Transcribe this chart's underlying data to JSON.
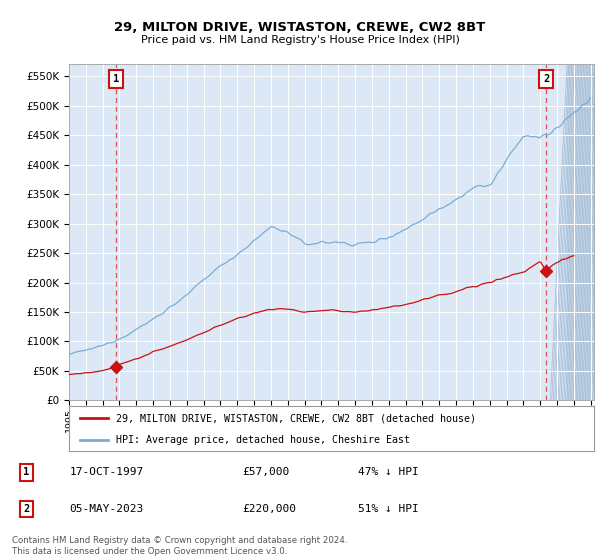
{
  "title1": "29, MILTON DRIVE, WISTASTON, CREWE, CW2 8BT",
  "title2": "Price paid vs. HM Land Registry's House Price Index (HPI)",
  "red_line_label": "29, MILTON DRIVE, WISTASTON, CREWE, CW2 8BT (detached house)",
  "blue_line_label": "HPI: Average price, detached house, Cheshire East",
  "transaction1_date": "17-OCT-1997",
  "transaction1_price": "£57,000",
  "transaction1_hpi": "47% ↓ HPI",
  "transaction2_date": "05-MAY-2023",
  "transaction2_price": "£220,000",
  "transaction2_hpi": "51% ↓ HPI",
  "footer": "Contains HM Land Registry data © Crown copyright and database right 2024.\nThis data is licensed under the Open Government Licence v3.0.",
  "ylim": [
    0,
    570000
  ],
  "yticks": [
    0,
    50000,
    100000,
    150000,
    200000,
    250000,
    300000,
    350000,
    400000,
    450000,
    500000,
    550000
  ],
  "ytick_labels": [
    "£0",
    "£50K",
    "£100K",
    "£150K",
    "£200K",
    "£250K",
    "£300K",
    "£350K",
    "£400K",
    "£450K",
    "£500K",
    "£550K"
  ],
  "xlim_start": 1995.3,
  "xlim_end": 2026.2,
  "transaction1_x": 1997.79,
  "transaction1_y": 57000,
  "transaction2_x": 2023.35,
  "transaction2_y": 220000,
  "plot_bg_color": "#dce8f5",
  "hpi_base_points_x": [
    1995,
    1996,
    1997,
    1998,
    1999,
    2000,
    2001,
    2002,
    2003,
    2004,
    2005,
    2006,
    2007,
    2008,
    2009,
    2010,
    2011,
    2012,
    2013,
    2014,
    2015,
    2016,
    2017,
    2018,
    2019,
    2020,
    2021,
    2022,
    2023,
    2024,
    2025,
    2026
  ],
  "hpi_base_points_y": [
    78000,
    85000,
    93000,
    105000,
    120000,
    138000,
    158000,
    178000,
    205000,
    228000,
    248000,
    270000,
    295000,
    285000,
    265000,
    268000,
    268000,
    265000,
    268000,
    278000,
    290000,
    308000,
    325000,
    342000,
    360000,
    365000,
    405000,
    450000,
    445000,
    460000,
    490000,
    510000
  ],
  "red_base_points_x": [
    1995,
    1996,
    1997,
    1997.79,
    1998,
    1999,
    2000,
    2001,
    2002,
    2003,
    2004,
    2005,
    2006,
    2007,
    2008,
    2009,
    2010,
    2011,
    2012,
    2013,
    2014,
    2015,
    2016,
    2017,
    2018,
    2019,
    2020,
    2021,
    2022,
    2023,
    2023.35,
    2024,
    2025
  ],
  "red_base_points_y": [
    44000,
    46000,
    50000,
    57000,
    62000,
    70000,
    82000,
    92000,
    103000,
    115000,
    128000,
    138000,
    148000,
    155000,
    155000,
    150000,
    152000,
    152000,
    150000,
    153000,
    158000,
    163000,
    170000,
    178000,
    185000,
    193000,
    200000,
    210000,
    218000,
    235000,
    220000,
    235000,
    245000
  ],
  "hatch_start": 2024.6
}
